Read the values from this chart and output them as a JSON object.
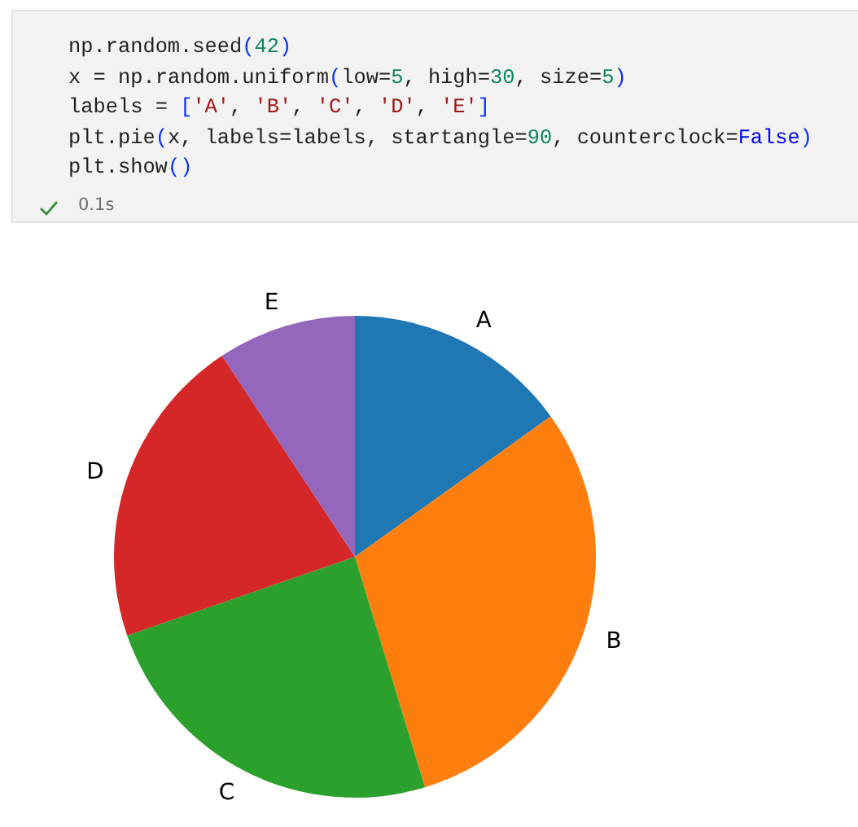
{
  "chart_data": {
    "type": "pie",
    "categories": [
      "A",
      "B",
      "C",
      "D",
      "E"
    ],
    "values": [
      15.1,
      30.2,
      24.4,
      21.0,
      9.3
    ],
    "colors": [
      "#1f77b4",
      "#ff7f0e",
      "#2ca02c",
      "#d62728",
      "#9467bd"
    ],
    "annotations": [
      "np.random.seed(42)",
      "x = np.random.uniform(low=5, high=30, size=5)",
      "labels = ['A', 'B', 'C', 'D', 'E']",
      "plt.pie(x, labels=labels, startangle=90, counterclock=False)",
      "plt.show()",
      "0.1s"
    ]
  }
}
